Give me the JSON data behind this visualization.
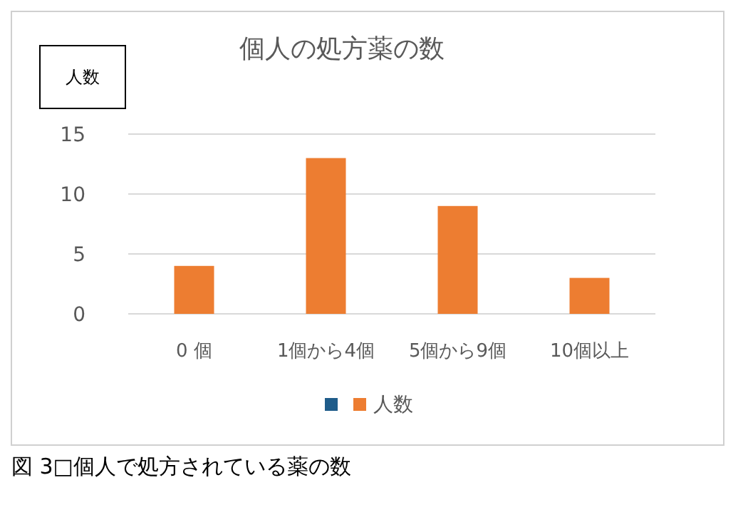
{
  "chart_data": {
    "type": "bar",
    "title": "個人の処方薬の数",
    "ylabel": "人数",
    "categories": [
      "0 個",
      "1個から4個",
      "5個から9個",
      "10個以上"
    ],
    "series": [
      {
        "color": "#1f5c8a",
        "values": [
          null,
          null,
          null,
          null
        ]
      },
      {
        "name": "人数",
        "color": "#ed7d31",
        "values": [
          4,
          13,
          9,
          3
        ]
      }
    ],
    "ylim": [
      0,
      15
    ],
    "yticks": [
      0,
      5,
      10,
      15
    ],
    "grid": "y",
    "legend": "bottom",
    "annotations": [
      "図 3□個人で処方されている薬の数"
    ]
  }
}
